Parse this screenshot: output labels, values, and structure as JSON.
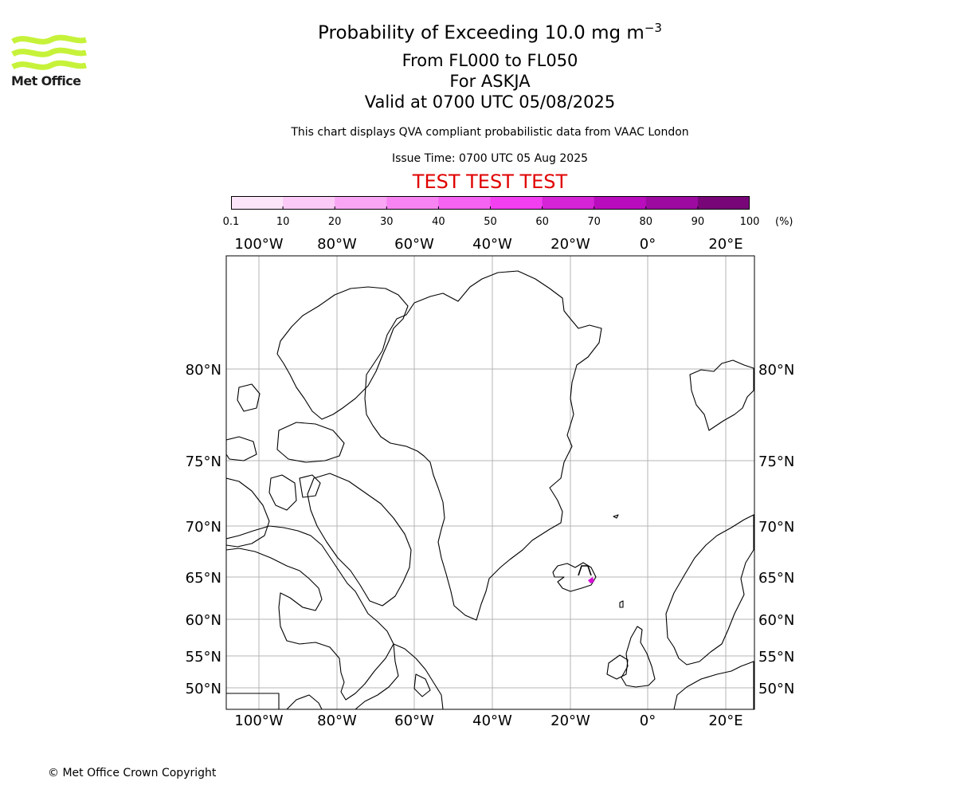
{
  "logo": {
    "text": "Met Office",
    "color": "#c6f23a",
    "icon": "met-office-wave-logo"
  },
  "header": {
    "title_main": "Probability of Exceeding 10.0 mg m",
    "title_exp": "−3",
    "level_range": "From FL000 to FL050",
    "volcano": "For ASKJA",
    "valid": "Valid at 0700 UTC 05/08/2025",
    "description": "This chart displays QVA compliant probabilistic data from VAAC London",
    "issue": "Issue Time: 0700 UTC 05 Aug 2025",
    "test_banner": "TEST TEST TEST"
  },
  "colorbar": {
    "tick_labels": [
      "0.1",
      "10",
      "20",
      "30",
      "40",
      "50",
      "60",
      "70",
      "80",
      "90",
      "100"
    ],
    "unit": "(%)",
    "colors": [
      "#fde5f9",
      "#fbcaf6",
      "#f9a6f4",
      "#f784f2",
      "#f463f1",
      "#f23ff0",
      "#d424d6",
      "#b90cbd",
      "#9c0aa0",
      "#780679"
    ]
  },
  "map": {
    "lon_labels": [
      "100°W",
      "80°W",
      "60°W",
      "40°W",
      "20°W",
      "0°",
      "20°E"
    ],
    "lat_labels": [
      "80°N",
      "75°N",
      "70°N",
      "65°N",
      "60°N",
      "55°N",
      "50°N"
    ],
    "highlight": {
      "name": "Askja",
      "lat": 65.0,
      "lon": -16.8,
      "color": "#d60fd6"
    }
  },
  "footer": {
    "copyright": "© Met Office Crown Copyright"
  }
}
